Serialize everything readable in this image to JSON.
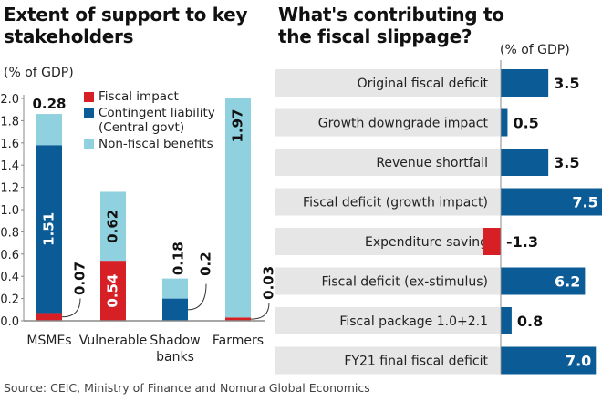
{
  "source": "Source: CEIC, Ministry of Finance and Nomura Global Economics",
  "colors": {
    "fiscal": "#d71f26",
    "contingent": "#0b5c96",
    "nonfiscal": "#8fd1de",
    "axis": "#888888",
    "label_bg": "#e6e6e6"
  },
  "chart_data": [
    {
      "type": "bar",
      "stacked": true,
      "title": "Extent of support to key stakeholders",
      "subtitle": "(% of GDP)",
      "ylabel": "(% of GDP)",
      "ylim": [
        0,
        2.0
      ],
      "yticks": [
        "0.0",
        "0.2",
        "0.4",
        "0.6",
        "0.8",
        "1.0",
        "1.2",
        "1.4",
        "1.6",
        "1.8",
        "2.0"
      ],
      "categories": [
        "MSMEs",
        "Vulnerable",
        "Shadow banks",
        "Farmers"
      ],
      "category_lines": [
        [
          "MSMEs"
        ],
        [
          "Vulnerable"
        ],
        [
          "Shadow",
          "banks"
        ],
        [
          "Farmers"
        ]
      ],
      "legend_position": "top-center",
      "series": [
        {
          "name": "Fiscal impact",
          "color_key": "fiscal",
          "values": [
            0.07,
            0.54,
            0,
            0.03
          ]
        },
        {
          "name": "Contingent liability (Central govt)",
          "color_key": "contingent",
          "values": [
            1.51,
            0,
            0.2,
            0
          ]
        },
        {
          "name": "Non-fiscal benefits",
          "color_key": "nonfiscal",
          "values": [
            0.28,
            0.62,
            0.18,
            1.97
          ]
        }
      ],
      "legend": [
        {
          "label": "Fiscal impact",
          "color_key": "fiscal"
        },
        {
          "label": "Contingent liability (Central govt)",
          "label_lines": [
            "Contingent liability",
            "(Central govt)"
          ],
          "color_key": "contingent"
        },
        {
          "label": "Non-fiscal benefits",
          "color_key": "nonfiscal"
        }
      ],
      "data_labels": [
        {
          "category": 0,
          "series": 2,
          "text": "0.28",
          "placement": "above",
          "rotated": false
        },
        {
          "category": 0,
          "series": 1,
          "text": "1.51",
          "placement": "inside",
          "rotated": true,
          "color": "#ffffff"
        },
        {
          "category": 0,
          "series": 0,
          "text": "0.07",
          "placement": "callout",
          "rotated": true
        },
        {
          "category": 1,
          "series": 2,
          "text": "0.62",
          "placement": "inside",
          "rotated": true
        },
        {
          "category": 1,
          "series": 0,
          "text": "0.54",
          "placement": "inside",
          "rotated": true,
          "color": "#ffffff"
        },
        {
          "category": 2,
          "series": 2,
          "text": "0.18",
          "placement": "above",
          "rotated": true
        },
        {
          "category": 2,
          "series": 1,
          "text": "0.2",
          "placement": "callout",
          "rotated": true
        },
        {
          "category": 3,
          "series": 2,
          "text": "1.97",
          "placement": "inside-top",
          "rotated": true
        },
        {
          "category": 3,
          "series": 0,
          "text": "0.03",
          "placement": "callout",
          "rotated": true
        }
      ]
    },
    {
      "type": "bar",
      "orientation": "horizontal",
      "title": "What's contributing to the fiscal slippage?",
      "subtitle": "(% of GDP)",
      "xlim": [
        -1.3,
        7.5
      ],
      "categories": [
        "Original fiscal deficit",
        "Growth downgrade impact",
        "Revenue shortfall",
        "Fiscal deficit (growth impact)",
        "Expenditure saving",
        "Fiscal deficit (ex-stimulus)",
        "Fiscal package 1.0+2.1",
        "FY21 final fiscal deficit"
      ],
      "values": [
        3.5,
        0.5,
        3.5,
        7.5,
        -1.3,
        6.2,
        0.8,
        7.0
      ],
      "value_labels": [
        "3.5",
        "0.5",
        "3.5",
        "7.5",
        "-1.3",
        "6.2",
        "0.8",
        "7.0"
      ]
    }
  ]
}
